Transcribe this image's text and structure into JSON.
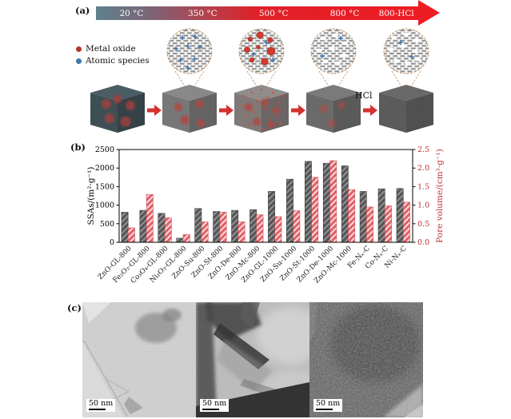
{
  "panel_a": {
    "label": "(a)",
    "temperature_stages": [
      "20 °C",
      "350 °C",
      "500 °C",
      "800 °C",
      "800-HCl"
    ],
    "arrow_gradient": [
      "#5e818e 0%",
      "#7e6374 18%",
      "#b04350 33%",
      "#e02028 50%",
      "#ee1c24 100%"
    ],
    "arrow_head_color": "#ee1c24",
    "legend": [
      {
        "name": "Metal oxide",
        "color": "#b5372a"
      },
      {
        "name": "Atomic species",
        "color": "#3f76a8"
      }
    ],
    "hcl_arrow_label": "HCl"
  },
  "panel_b": {
    "label": "(b)"
  },
  "chart_data": {
    "type": "bar",
    "title": "",
    "categories": [
      "ZnO-GL-800",
      "Fe₂O₃-GL-800",
      "Co₃O₄-GL-800",
      "Ni₂O₃-GL-800",
      "ZnO-Su-800",
      "ZnO-St-800",
      "ZnO-De-800",
      "ZnO-Mc-800",
      "ZnO-GL-1000",
      "ZnO-Su-1000",
      "ZnO-St-1000",
      "ZnO-De-1000",
      "ZnO-Mc-1000",
      "Fe-Nₓ-C",
      "Co-Nₓ-C",
      "Ni-Nₓ-C"
    ],
    "series": [
      {
        "name": "SSAs",
        "axis": "left",
        "unit": "m²·g⁻¹",
        "color": "#565656",
        "hatch": "#a2a2a2",
        "values": [
          810,
          860,
          780,
          110,
          910,
          830,
          860,
          880,
          1370,
          1700,
          2180,
          2130,
          2060,
          1370,
          1440,
          1450
        ]
      },
      {
        "name": "Pore volume",
        "axis": "right",
        "unit": "cm³·g⁻¹",
        "color": "#e4636b",
        "hatch": "#ffffff",
        "values": [
          0.39,
          1.29,
          0.66,
          0.21,
          0.55,
          0.81,
          0.55,
          0.74,
          0.69,
          0.85,
          1.75,
          2.2,
          1.42,
          0.95,
          0.98,
          1.08
        ]
      }
    ],
    "ylabel_left": "SSAs/(m²·g⁻¹)",
    "ylabel_right": "Pore volume/(cm³·g⁻¹)",
    "ylim_left": [
      0,
      2500
    ],
    "ylim_right": [
      0,
      2.5
    ],
    "yticks_left": [
      "0",
      "500",
      "1000",
      "1500",
      "2000",
      "2500"
    ],
    "yticks_right": [
      "0.0",
      "0.5",
      "1.0",
      "1.5",
      "2.0",
      "2.5"
    ],
    "right_axis_color": "#c03030",
    "grid": false,
    "legend_position": "none"
  },
  "panel_c": {
    "label": "(c)",
    "scale_bars": [
      "50 nm",
      "50 nm",
      "50 nm"
    ]
  }
}
